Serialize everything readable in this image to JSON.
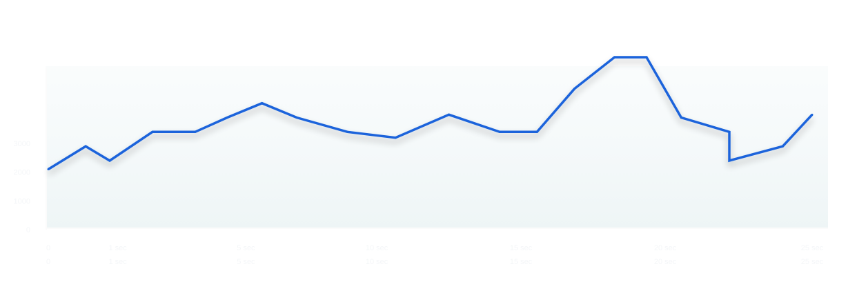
{
  "chart_data": {
    "type": "line",
    "title": "",
    "xlabel": "",
    "ylabel": "",
    "x": [
      0,
      1.4,
      2.3,
      3.9,
      5.5,
      6.7,
      8.0,
      9.3,
      11.2,
      13.0,
      15.0,
      16.9,
      18.3,
      19.7,
      21.2,
      22.4,
      23.7,
      25.5,
      25.5,
      27.5,
      28.6
    ],
    "series": [
      {
        "values": [
          42,
          58,
          48,
          68,
          68,
          78,
          88,
          78,
          68,
          64,
          80,
          68,
          68,
          98,
          120,
          120,
          78,
          68,
          48,
          58,
          80
        ]
      }
    ],
    "color": "#1a64db",
    "ylim": [
      0,
      120
    ],
    "xlim": [
      0,
      28.6
    ],
    "y_ticks": [
      {
        "value": 0,
        "label": "0"
      },
      {
        "value": 20,
        "label": "1000"
      },
      {
        "value": 40,
        "label": "2000"
      },
      {
        "value": 60,
        "label": "3000"
      }
    ],
    "x_ticks": [
      {
        "value": 0,
        "top": "0",
        "bottom": "0"
      },
      {
        "value": 2.6,
        "top": "1 sec",
        "bottom": "1 sec"
      },
      {
        "value": 7.4,
        "top": "5 sec",
        "bottom": "5 sec"
      },
      {
        "value": 12.3,
        "top": "10 sec",
        "bottom": "10 sec"
      },
      {
        "value": 17.7,
        "top": "15 sec",
        "bottom": "15 sec"
      },
      {
        "value": 23.1,
        "top": "20 sec",
        "bottom": "20 sec"
      },
      {
        "value": 28.6,
        "top": "25 sec",
        "bottom": "25 sec"
      }
    ],
    "grid": false
  }
}
